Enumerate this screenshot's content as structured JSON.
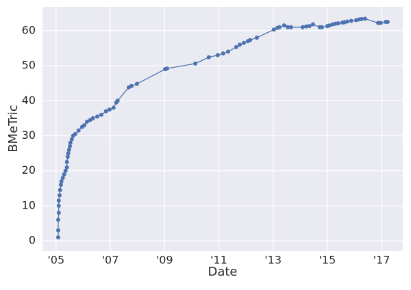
{
  "chart_data": {
    "type": "line",
    "x_label": "Date",
    "y_label": "BMeTric",
    "color": "#4c72b0",
    "grid": true,
    "x": [
      2005.08,
      2005.08,
      2005.08,
      2005.1,
      2005.1,
      2005.1,
      2005.13,
      2005.15,
      2005.18,
      2005.2,
      2005.25,
      2005.3,
      2005.35,
      2005.4,
      2005.4,
      2005.43,
      2005.45,
      2005.48,
      2005.51,
      2005.53,
      2005.58,
      2005.63,
      2005.71,
      2005.83,
      2005.96,
      2006.04,
      2006.14,
      2006.26,
      2006.36,
      2006.52,
      2006.67,
      2006.84,
      2006.97,
      2007.12,
      2007.22,
      2007.27,
      2007.68,
      2007.78,
      2007.98,
      2009.02,
      2009.09,
      2010.13,
      2010.63,
      2010.96,
      2011.16,
      2011.34,
      2011.64,
      2011.77,
      2011.92,
      2012.07,
      2012.15,
      2012.4,
      2013.03,
      2013.16,
      2013.23,
      2013.41,
      2013.54,
      2013.66,
      2014.09,
      2014.22,
      2014.34,
      2014.47,
      2014.72,
      2014.8,
      2015.0,
      2015.08,
      2015.2,
      2015.3,
      2015.4,
      2015.56,
      2015.63,
      2015.73,
      2015.88,
      2016.06,
      2016.16,
      2016.26,
      2016.39,
      2016.87,
      2016.97,
      2017.15,
      2017.22
    ],
    "values": [
      1,
      3,
      6,
      8,
      10,
      11.5,
      13,
      14.5,
      16,
      17,
      18,
      19,
      20,
      21,
      22.5,
      24,
      25,
      26,
      27,
      28,
      29,
      30,
      30.5,
      31.5,
      32.5,
      33,
      34,
      34.5,
      35,
      35.5,
      36,
      37,
      37.5,
      38,
      39.5,
      40,
      43.8,
      44.2,
      44.8,
      49,
      49.2,
      50.6,
      52.4,
      53,
      53.5,
      54,
      55.3,
      56,
      56.5,
      57,
      57.3,
      58,
      60.3,
      60.8,
      61,
      61.5,
      61,
      61,
      61,
      61.2,
      61.3,
      61.8,
      61,
      61,
      61.3,
      61.5,
      61.8,
      62,
      62.1,
      62.3,
      62.4,
      62.6,
      62.8,
      63,
      63.2,
      63.3,
      63.4,
      62.2,
      62.2,
      62.5,
      62.5
    ],
    "xlim": [
      2004.5,
      2017.78
    ],
    "xticks": [
      {
        "value": 2005,
        "label": "'05"
      },
      {
        "value": 2007,
        "label": "'07"
      },
      {
        "value": 2009,
        "label": "'09"
      },
      {
        "value": 2011,
        "label": "'11"
      },
      {
        "value": 2013,
        "label": "'13"
      },
      {
        "value": 2015,
        "label": "'15"
      },
      {
        "value": 2017,
        "label": "'17"
      }
    ],
    "ylim": [
      -2.9,
      66.8
    ],
    "yticks": [
      0,
      10,
      20,
      30,
      40,
      50,
      60
    ]
  }
}
